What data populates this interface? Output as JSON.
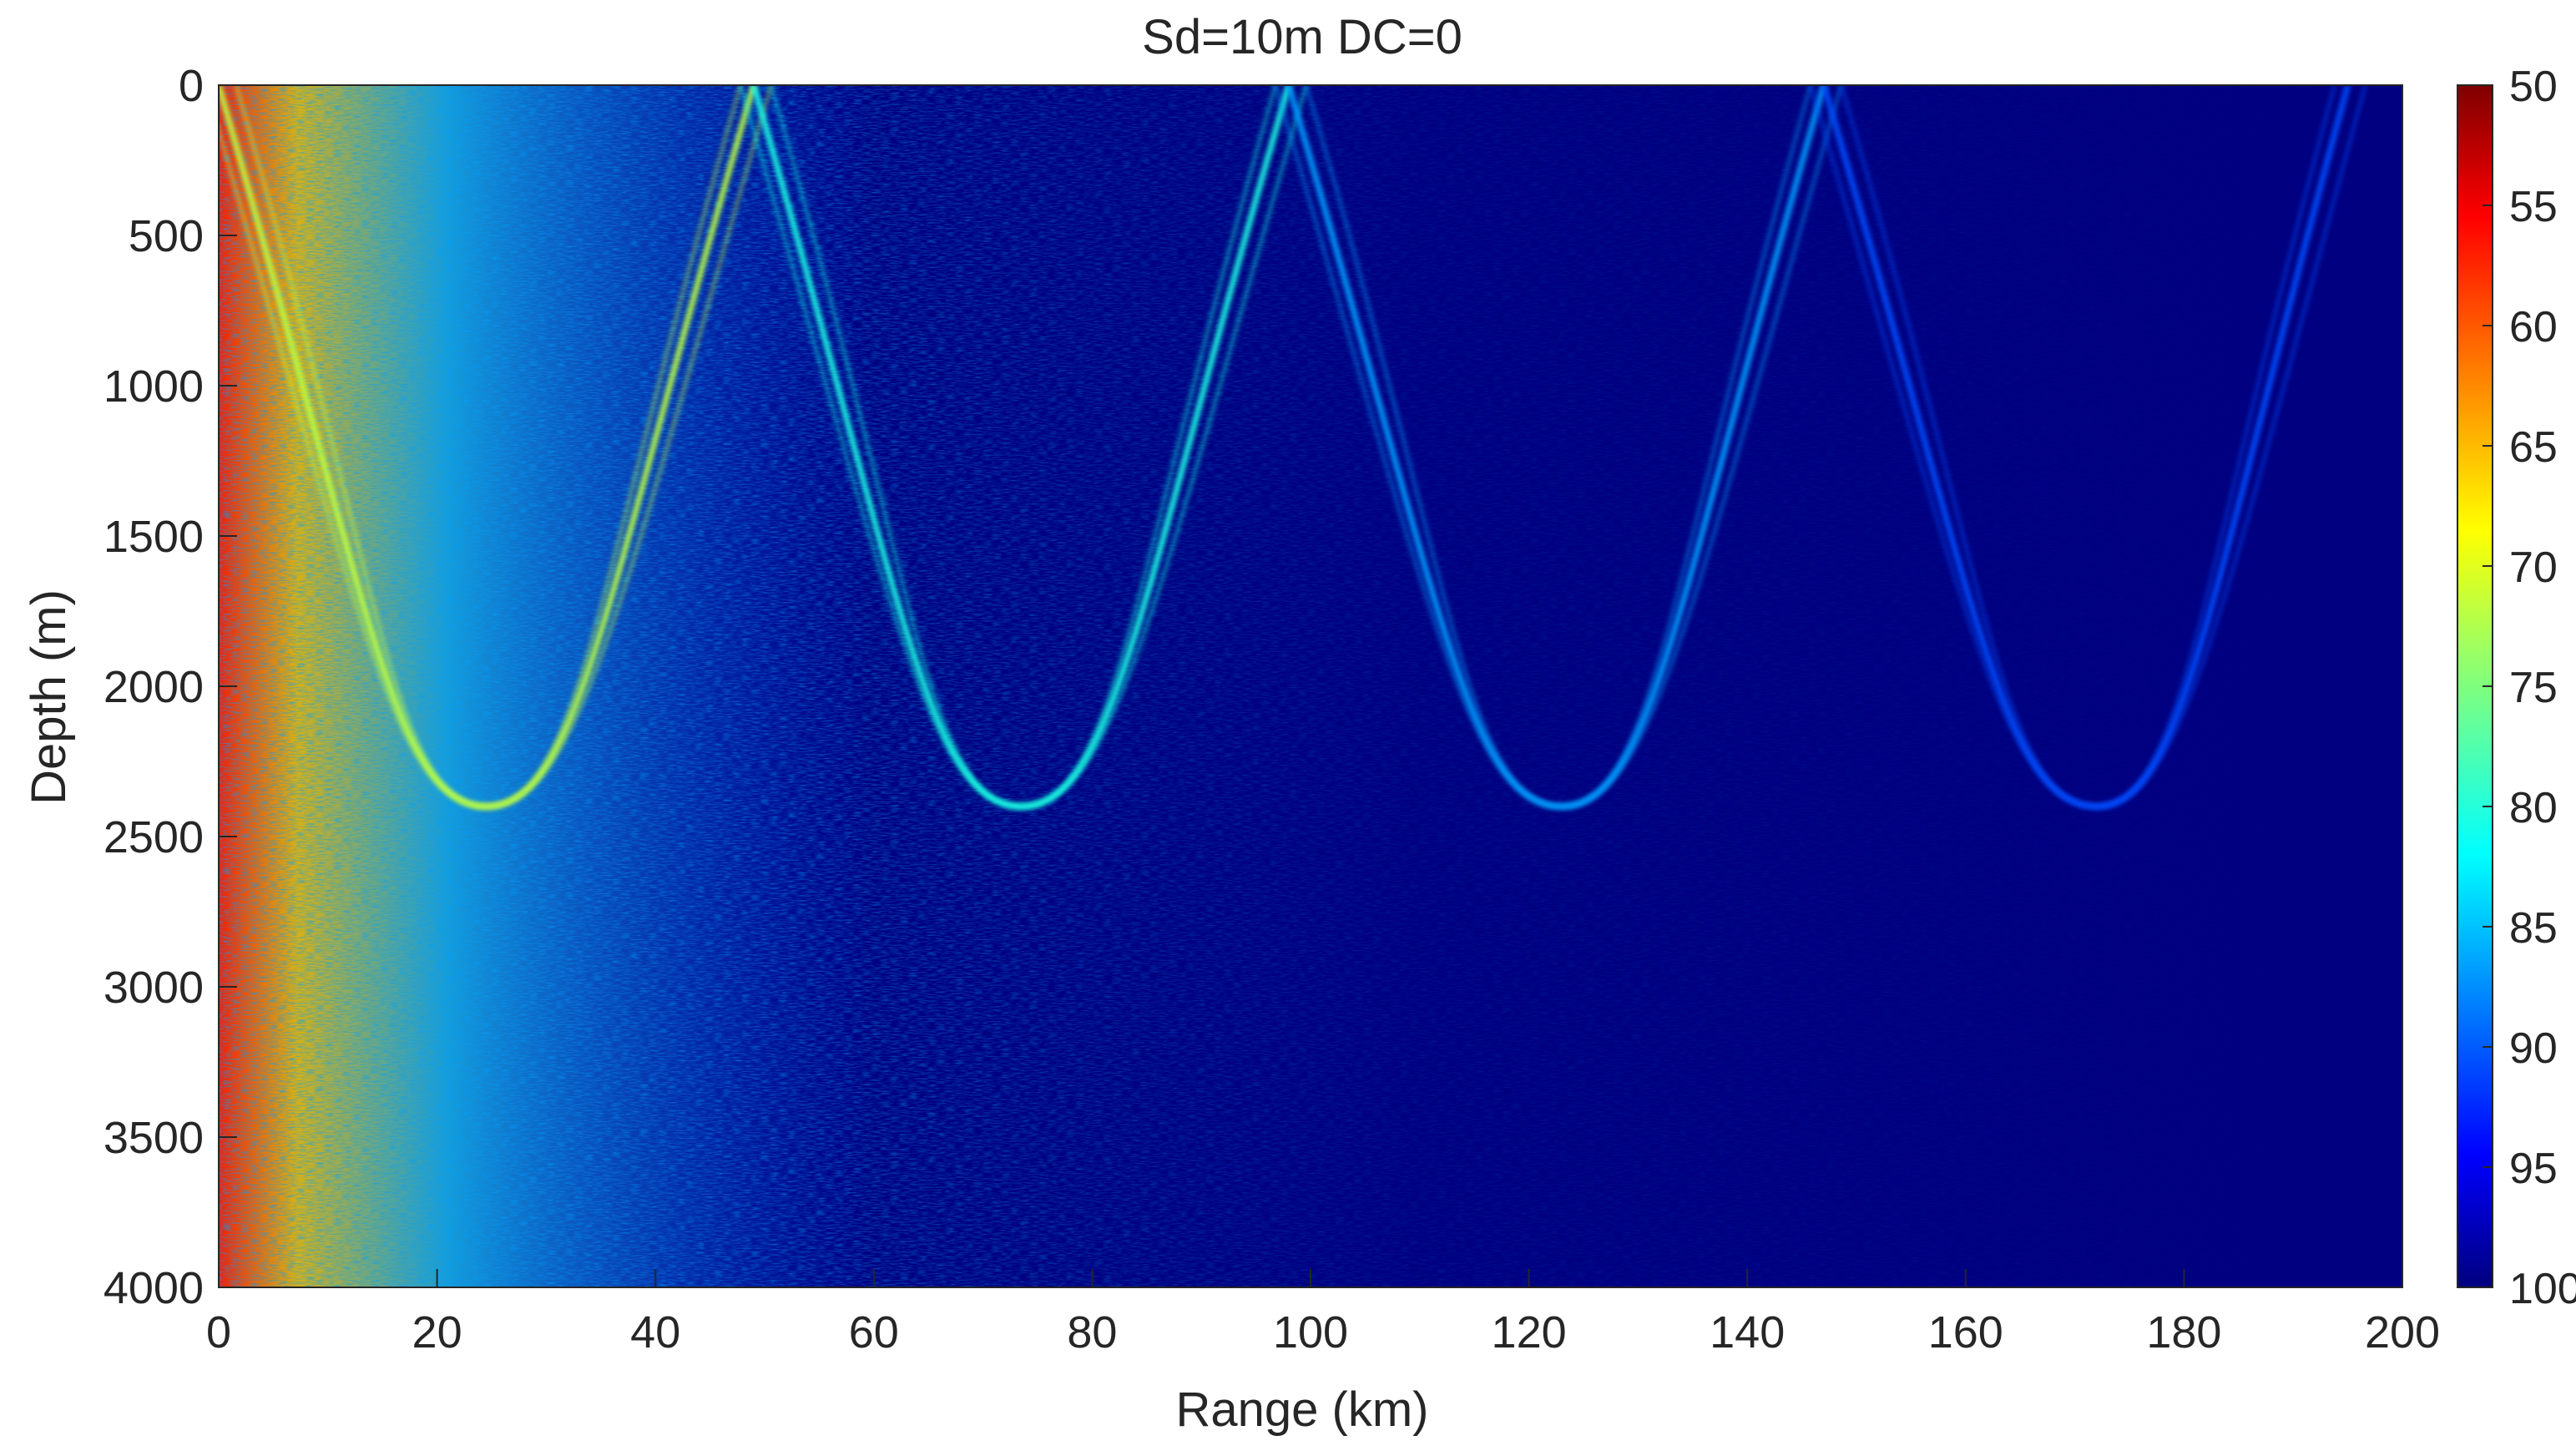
{
  "chart_data": {
    "type": "heatmap",
    "title": "Sd=10m   DC=0",
    "xlabel": "Range (km)",
    "ylabel": "Depth (m)",
    "xlim": [
      0,
      200
    ],
    "ylim": [
      0,
      4000
    ],
    "y_reversed": true,
    "x_ticks": [
      0,
      20,
      40,
      60,
      80,
      100,
      120,
      140,
      160,
      180,
      200
    ],
    "y_ticks": [
      0,
      500,
      1000,
      1500,
      2000,
      2500,
      3000,
      3500,
      4000
    ],
    "colorbar": {
      "colormap": "jet",
      "reversed": true,
      "clim": [
        50,
        100
      ],
      "ticks": [
        50,
        55,
        60,
        65,
        70,
        75,
        80,
        85,
        90,
        95,
        100
      ]
    },
    "background_level": 100,
    "ray_paths": {
      "surface_depth": 0,
      "turning_depth": 2400,
      "convergence_zone_ranges": [
        0,
        49,
        98,
        147,
        195
      ],
      "deep_turning_ranges": [
        24.5,
        73.5,
        123,
        172
      ],
      "levels_by_zone": [
        72,
        80,
        86,
        90,
        92
      ]
    },
    "colors": {
      "jet_low": "#7f0000",
      "jet_high": "#00007f"
    }
  }
}
